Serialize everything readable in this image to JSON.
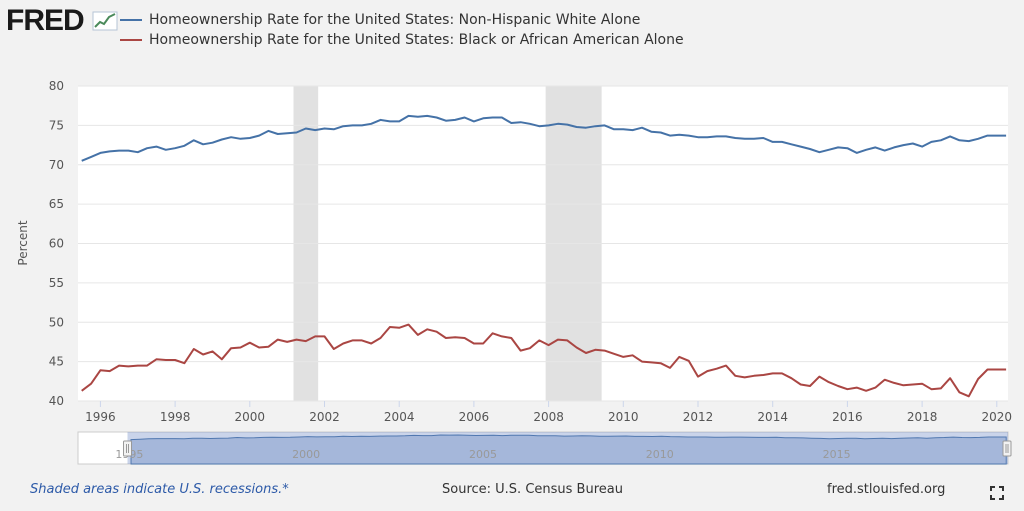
{
  "brand": {
    "logo_text": "FRED",
    "logo_icon": "chart-line-icon"
  },
  "chart_data": {
    "type": "line",
    "title": "",
    "xlabel": "",
    "ylabel": "Percent",
    "ylim": [
      40,
      80
    ],
    "yticks": [
      40,
      45,
      50,
      55,
      60,
      65,
      70,
      75,
      80
    ],
    "xlim": [
      1995.4,
      2020.3
    ],
    "xticks": [
      1996,
      1998,
      2000,
      2002,
      2004,
      2006,
      2008,
      2010,
      2012,
      2014,
      2016,
      2018,
      2020
    ],
    "grid": true,
    "legend_position": "top-left",
    "recessions": [
      [
        2001.17,
        2001.83
      ],
      [
        2007.92,
        2009.42
      ]
    ],
    "series": [
      {
        "name": "Homeownership Rate for the United States: Non-Hispanic White Alone",
        "color": "#4572a7",
        "x": [
          1995.5,
          1995.75,
          1996.0,
          1996.25,
          1996.5,
          1996.75,
          1997.0,
          1997.25,
          1997.5,
          1997.75,
          1998.0,
          1998.25,
          1998.5,
          1998.75,
          1999.0,
          1999.25,
          1999.5,
          1999.75,
          2000.0,
          2000.25,
          2000.5,
          2000.75,
          2001.0,
          2001.25,
          2001.5,
          2001.75,
          2002.0,
          2002.25,
          2002.5,
          2002.75,
          2003.0,
          2003.25,
          2003.5,
          2003.75,
          2004.0,
          2004.25,
          2004.5,
          2004.75,
          2005.0,
          2005.25,
          2005.5,
          2005.75,
          2006.0,
          2006.25,
          2006.5,
          2006.75,
          2007.0,
          2007.25,
          2007.5,
          2007.75,
          2008.0,
          2008.25,
          2008.5,
          2008.75,
          2009.0,
          2009.25,
          2009.5,
          2009.75,
          2010.0,
          2010.25,
          2010.5,
          2010.75,
          2011.0,
          2011.25,
          2011.5,
          2011.75,
          2012.0,
          2012.25,
          2012.5,
          2012.75,
          2013.0,
          2013.25,
          2013.5,
          2013.75,
          2014.0,
          2014.25,
          2014.5,
          2014.75,
          2015.0,
          2015.25,
          2015.5,
          2015.75,
          2016.0,
          2016.25,
          2016.5,
          2016.75,
          2017.0,
          2017.25,
          2017.5,
          2017.75,
          2018.0,
          2018.25,
          2018.5,
          2018.75,
          2019.0,
          2019.25,
          2019.5,
          2019.75,
          2020.0,
          2020.25
        ],
        "values": [
          70.5,
          71.0,
          71.5,
          71.7,
          71.8,
          71.8,
          71.6,
          72.1,
          72.3,
          71.9,
          72.1,
          72.4,
          73.1,
          72.6,
          72.8,
          73.2,
          73.5,
          73.3,
          73.4,
          73.7,
          74.3,
          73.9,
          74.0,
          74.1,
          74.6,
          74.4,
          74.6,
          74.5,
          74.9,
          75.0,
          75.0,
          75.2,
          75.7,
          75.5,
          75.5,
          76.2,
          76.1,
          76.2,
          76.0,
          75.6,
          75.7,
          76.0,
          75.5,
          75.9,
          76.0,
          76.0,
          75.3,
          75.4,
          75.2,
          74.9,
          75.0,
          75.2,
          75.1,
          74.8,
          74.7,
          74.9,
          75.0,
          74.5,
          74.5,
          74.4,
          74.7,
          74.2,
          74.1,
          73.7,
          73.8,
          73.7,
          73.5,
          73.5,
          73.6,
          73.6,
          73.4,
          73.3,
          73.3,
          73.4,
          72.9,
          72.9,
          72.6,
          72.3,
          72.0,
          71.6,
          71.9,
          72.2,
          72.1,
          71.5,
          71.9,
          72.2,
          71.8,
          72.2,
          72.5,
          72.7,
          72.3,
          72.9,
          73.1,
          73.6,
          73.1,
          73.0,
          73.3,
          73.7,
          73.7,
          73.7
        ]
      },
      {
        "name": "Homeownership Rate for the United States: Black or African American Alone",
        "color": "#aa4643",
        "x": [
          1995.5,
          1995.75,
          1996.0,
          1996.25,
          1996.5,
          1996.75,
          1997.0,
          1997.25,
          1997.5,
          1997.75,
          1998.0,
          1998.25,
          1998.5,
          1998.75,
          1999.0,
          1999.25,
          1999.5,
          1999.75,
          2000.0,
          2000.25,
          2000.5,
          2000.75,
          2001.0,
          2001.25,
          2001.5,
          2001.75,
          2002.0,
          2002.25,
          2002.5,
          2002.75,
          2003.0,
          2003.25,
          2003.5,
          2003.75,
          2004.0,
          2004.25,
          2004.5,
          2004.75,
          2005.0,
          2005.25,
          2005.5,
          2005.75,
          2006.0,
          2006.25,
          2006.5,
          2006.75,
          2007.0,
          2007.25,
          2007.5,
          2007.75,
          2008.0,
          2008.25,
          2008.5,
          2008.75,
          2009.0,
          2009.25,
          2009.5,
          2009.75,
          2010.0,
          2010.25,
          2010.5,
          2010.75,
          2011.0,
          2011.25,
          2011.5,
          2011.75,
          2012.0,
          2012.25,
          2012.5,
          2012.75,
          2013.0,
          2013.25,
          2013.5,
          2013.75,
          2014.0,
          2014.25,
          2014.5,
          2014.75,
          2015.0,
          2015.25,
          2015.5,
          2015.75,
          2016.0,
          2016.25,
          2016.5,
          2016.75,
          2017.0,
          2017.25,
          2017.5,
          2017.75,
          2018.0,
          2018.25,
          2018.5,
          2018.75,
          2019.0,
          2019.25,
          2019.5,
          2019.75,
          2020.0,
          2020.25
        ],
        "values": [
          41.3,
          42.2,
          43.9,
          43.8,
          44.5,
          44.4,
          44.5,
          44.5,
          45.3,
          45.2,
          45.2,
          44.8,
          46.6,
          45.9,
          46.3,
          45.3,
          46.7,
          46.8,
          47.4,
          46.8,
          46.9,
          47.8,
          47.5,
          47.8,
          47.6,
          48.2,
          48.2,
          46.6,
          47.3,
          47.7,
          47.7,
          47.3,
          48.0,
          49.4,
          49.3,
          49.7,
          48.4,
          49.1,
          48.8,
          48.0,
          48.1,
          48.0,
          47.3,
          47.3,
          48.6,
          48.2,
          48.0,
          46.4,
          46.7,
          47.7,
          47.1,
          47.8,
          47.7,
          46.8,
          46.1,
          46.5,
          46.4,
          46.0,
          45.6,
          45.8,
          45.0,
          44.9,
          44.8,
          44.2,
          45.6,
          45.1,
          43.1,
          43.8,
          44.1,
          44.5,
          43.2,
          43.0,
          43.2,
          43.3,
          43.5,
          43.5,
          42.9,
          42.1,
          41.9,
          43.1,
          42.4,
          41.9,
          41.5,
          41.7,
          41.3,
          41.7,
          42.7,
          42.3,
          42.0,
          42.1,
          42.2,
          41.5,
          41.6,
          42.9,
          41.1,
          40.6,
          42.8,
          44.0,
          44.0,
          44.0
        ]
      }
    ]
  },
  "navigator": {
    "labels": [
      "1995",
      "2000",
      "2005",
      "2010",
      "2015"
    ]
  },
  "footer": {
    "recession_note": "Shaded areas indicate U.S. recessions.*",
    "source": "Source: U.S. Census Bureau",
    "site": "fred.stlouisfed.org",
    "fullscreen_icon": "fullscreen-icon"
  }
}
